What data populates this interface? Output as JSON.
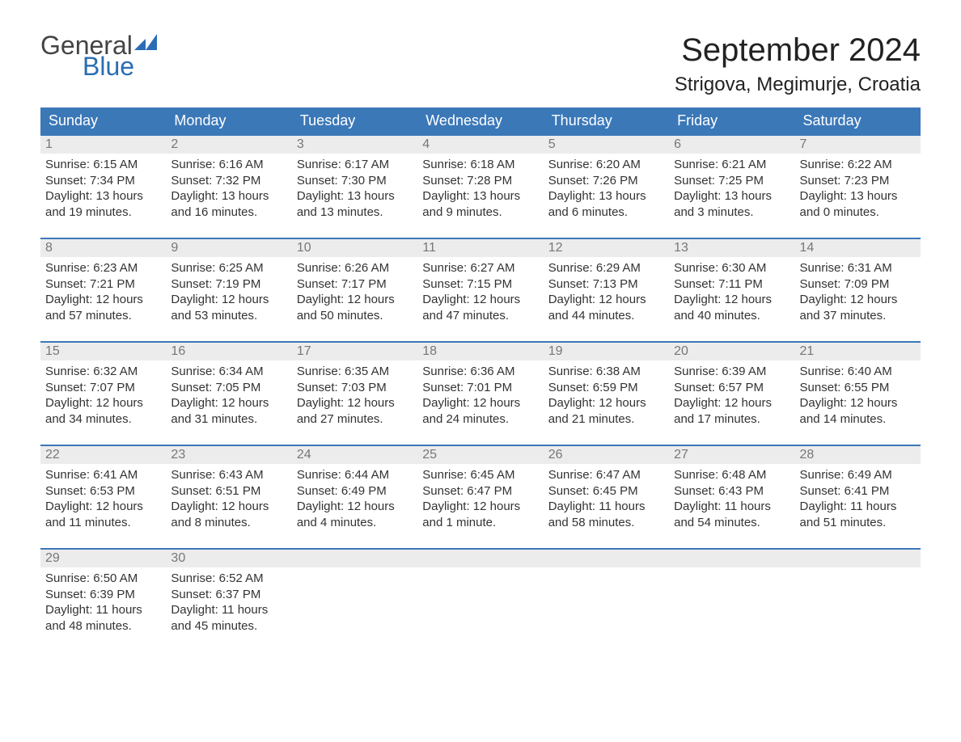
{
  "logo": {
    "general": "General",
    "blue": "Blue"
  },
  "title": "September 2024",
  "location": "Strigova, Megimurje, Croatia",
  "colors": {
    "header_bg": "#3b78b8",
    "header_text": "#ffffff",
    "daynum_bg": "#ececec",
    "daynum_text": "#777777",
    "rule": "#3b78b8",
    "body_text": "#333333",
    "logo_blue": "#2a6db4",
    "page_bg": "#ffffff"
  },
  "fonts": {
    "title_pt": 40,
    "location_pt": 24,
    "dow_pt": 18,
    "body_pt": 15,
    "logo_pt": 32
  },
  "daysOfWeek": [
    "Sunday",
    "Monday",
    "Tuesday",
    "Wednesday",
    "Thursday",
    "Friday",
    "Saturday"
  ],
  "weeks": [
    [
      {
        "n": "1",
        "sunrise": "Sunrise: 6:15 AM",
        "sunset": "Sunset: 7:34 PM",
        "daylight1": "Daylight: 13 hours",
        "daylight2": "and 19 minutes."
      },
      {
        "n": "2",
        "sunrise": "Sunrise: 6:16 AM",
        "sunset": "Sunset: 7:32 PM",
        "daylight1": "Daylight: 13 hours",
        "daylight2": "and 16 minutes."
      },
      {
        "n": "3",
        "sunrise": "Sunrise: 6:17 AM",
        "sunset": "Sunset: 7:30 PM",
        "daylight1": "Daylight: 13 hours",
        "daylight2": "and 13 minutes."
      },
      {
        "n": "4",
        "sunrise": "Sunrise: 6:18 AM",
        "sunset": "Sunset: 7:28 PM",
        "daylight1": "Daylight: 13 hours",
        "daylight2": "and 9 minutes."
      },
      {
        "n": "5",
        "sunrise": "Sunrise: 6:20 AM",
        "sunset": "Sunset: 7:26 PM",
        "daylight1": "Daylight: 13 hours",
        "daylight2": "and 6 minutes."
      },
      {
        "n": "6",
        "sunrise": "Sunrise: 6:21 AM",
        "sunset": "Sunset: 7:25 PM",
        "daylight1": "Daylight: 13 hours",
        "daylight2": "and 3 minutes."
      },
      {
        "n": "7",
        "sunrise": "Sunrise: 6:22 AM",
        "sunset": "Sunset: 7:23 PM",
        "daylight1": "Daylight: 13 hours",
        "daylight2": "and 0 minutes."
      }
    ],
    [
      {
        "n": "8",
        "sunrise": "Sunrise: 6:23 AM",
        "sunset": "Sunset: 7:21 PM",
        "daylight1": "Daylight: 12 hours",
        "daylight2": "and 57 minutes."
      },
      {
        "n": "9",
        "sunrise": "Sunrise: 6:25 AM",
        "sunset": "Sunset: 7:19 PM",
        "daylight1": "Daylight: 12 hours",
        "daylight2": "and 53 minutes."
      },
      {
        "n": "10",
        "sunrise": "Sunrise: 6:26 AM",
        "sunset": "Sunset: 7:17 PM",
        "daylight1": "Daylight: 12 hours",
        "daylight2": "and 50 minutes."
      },
      {
        "n": "11",
        "sunrise": "Sunrise: 6:27 AM",
        "sunset": "Sunset: 7:15 PM",
        "daylight1": "Daylight: 12 hours",
        "daylight2": "and 47 minutes."
      },
      {
        "n": "12",
        "sunrise": "Sunrise: 6:29 AM",
        "sunset": "Sunset: 7:13 PM",
        "daylight1": "Daylight: 12 hours",
        "daylight2": "and 44 minutes."
      },
      {
        "n": "13",
        "sunrise": "Sunrise: 6:30 AM",
        "sunset": "Sunset: 7:11 PM",
        "daylight1": "Daylight: 12 hours",
        "daylight2": "and 40 minutes."
      },
      {
        "n": "14",
        "sunrise": "Sunrise: 6:31 AM",
        "sunset": "Sunset: 7:09 PM",
        "daylight1": "Daylight: 12 hours",
        "daylight2": "and 37 minutes."
      }
    ],
    [
      {
        "n": "15",
        "sunrise": "Sunrise: 6:32 AM",
        "sunset": "Sunset: 7:07 PM",
        "daylight1": "Daylight: 12 hours",
        "daylight2": "and 34 minutes."
      },
      {
        "n": "16",
        "sunrise": "Sunrise: 6:34 AM",
        "sunset": "Sunset: 7:05 PM",
        "daylight1": "Daylight: 12 hours",
        "daylight2": "and 31 minutes."
      },
      {
        "n": "17",
        "sunrise": "Sunrise: 6:35 AM",
        "sunset": "Sunset: 7:03 PM",
        "daylight1": "Daylight: 12 hours",
        "daylight2": "and 27 minutes."
      },
      {
        "n": "18",
        "sunrise": "Sunrise: 6:36 AM",
        "sunset": "Sunset: 7:01 PM",
        "daylight1": "Daylight: 12 hours",
        "daylight2": "and 24 minutes."
      },
      {
        "n": "19",
        "sunrise": "Sunrise: 6:38 AM",
        "sunset": "Sunset: 6:59 PM",
        "daylight1": "Daylight: 12 hours",
        "daylight2": "and 21 minutes."
      },
      {
        "n": "20",
        "sunrise": "Sunrise: 6:39 AM",
        "sunset": "Sunset: 6:57 PM",
        "daylight1": "Daylight: 12 hours",
        "daylight2": "and 17 minutes."
      },
      {
        "n": "21",
        "sunrise": "Sunrise: 6:40 AM",
        "sunset": "Sunset: 6:55 PM",
        "daylight1": "Daylight: 12 hours",
        "daylight2": "and 14 minutes."
      }
    ],
    [
      {
        "n": "22",
        "sunrise": "Sunrise: 6:41 AM",
        "sunset": "Sunset: 6:53 PM",
        "daylight1": "Daylight: 12 hours",
        "daylight2": "and 11 minutes."
      },
      {
        "n": "23",
        "sunrise": "Sunrise: 6:43 AM",
        "sunset": "Sunset: 6:51 PM",
        "daylight1": "Daylight: 12 hours",
        "daylight2": "and 8 minutes."
      },
      {
        "n": "24",
        "sunrise": "Sunrise: 6:44 AM",
        "sunset": "Sunset: 6:49 PM",
        "daylight1": "Daylight: 12 hours",
        "daylight2": "and 4 minutes."
      },
      {
        "n": "25",
        "sunrise": "Sunrise: 6:45 AM",
        "sunset": "Sunset: 6:47 PM",
        "daylight1": "Daylight: 12 hours",
        "daylight2": "and 1 minute."
      },
      {
        "n": "26",
        "sunrise": "Sunrise: 6:47 AM",
        "sunset": "Sunset: 6:45 PM",
        "daylight1": "Daylight: 11 hours",
        "daylight2": "and 58 minutes."
      },
      {
        "n": "27",
        "sunrise": "Sunrise: 6:48 AM",
        "sunset": "Sunset: 6:43 PM",
        "daylight1": "Daylight: 11 hours",
        "daylight2": "and 54 minutes."
      },
      {
        "n": "28",
        "sunrise": "Sunrise: 6:49 AM",
        "sunset": "Sunset: 6:41 PM",
        "daylight1": "Daylight: 11 hours",
        "daylight2": "and 51 minutes."
      }
    ],
    [
      {
        "n": "29",
        "sunrise": "Sunrise: 6:50 AM",
        "sunset": "Sunset: 6:39 PM",
        "daylight1": "Daylight: 11 hours",
        "daylight2": "and 48 minutes."
      },
      {
        "n": "30",
        "sunrise": "Sunrise: 6:52 AM",
        "sunset": "Sunset: 6:37 PM",
        "daylight1": "Daylight: 11 hours",
        "daylight2": "and 45 minutes."
      },
      {
        "n": "",
        "sunrise": "",
        "sunset": "",
        "daylight1": "",
        "daylight2": ""
      },
      {
        "n": "",
        "sunrise": "",
        "sunset": "",
        "daylight1": "",
        "daylight2": ""
      },
      {
        "n": "",
        "sunrise": "",
        "sunset": "",
        "daylight1": "",
        "daylight2": ""
      },
      {
        "n": "",
        "sunrise": "",
        "sunset": "",
        "daylight1": "",
        "daylight2": ""
      },
      {
        "n": "",
        "sunrise": "",
        "sunset": "",
        "daylight1": "",
        "daylight2": ""
      }
    ]
  ]
}
